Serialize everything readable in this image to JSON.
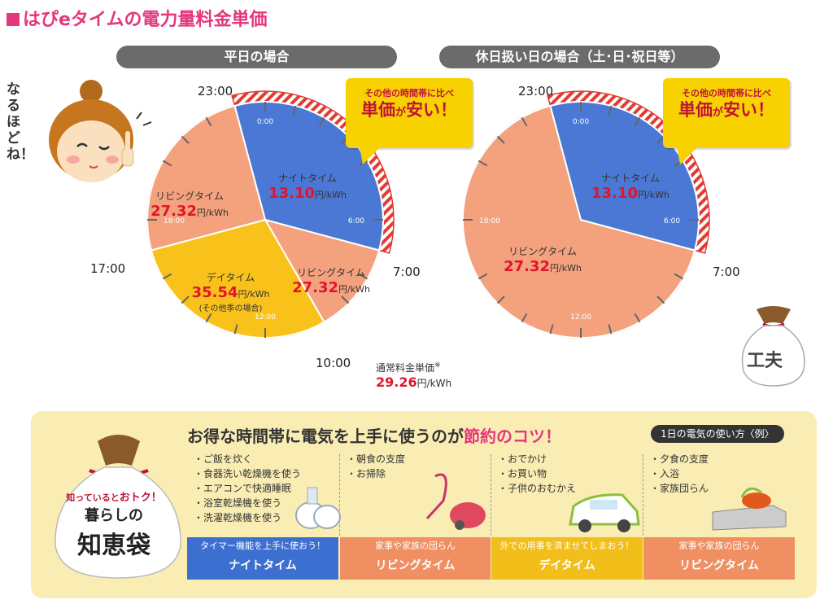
{
  "page_title": "はぴeタイムの電力量料金単価",
  "girl_text": "なるほどね！",
  "weekday": {
    "label": "平日の場合",
    "hours": {
      "h23": "23:00",
      "h17": "17:00",
      "h7": "7:00",
      "h10": "10:00"
    },
    "inner_ticks": {
      "t0": "0:00",
      "t6": "6:00",
      "t12": "12:00",
      "t18": "18:00"
    },
    "segments": {
      "night": {
        "name": "ナイトタイム",
        "price": "13.10",
        "unit": "円/kWh"
      },
      "living1": {
        "name": "リビングタイム",
        "price": "27.32",
        "unit": "円/kWh"
      },
      "living2": {
        "name": "リビングタイム",
        "price": "27.32",
        "unit": "円/kWh"
      },
      "day": {
        "name": "デイタイム",
        "price": "35.54",
        "unit": "円/kWh",
        "note": "(その他季の場合)"
      }
    },
    "bubble": {
      "line1": "その他の時間帯に比べ",
      "big1": "単価",
      "small": "が",
      "big2": "安い！"
    }
  },
  "holiday": {
    "label": "休日扱い日の場合（土･日･祝日等）",
    "hours": {
      "h23": "23:00",
      "h7": "7:00"
    },
    "inner_ticks": {
      "t0": "0:00",
      "t6": "6:00",
      "t12": "12:00",
      "t18": "18:00"
    },
    "segments": {
      "night": {
        "name": "ナイトタイム",
        "price": "13.10",
        "unit": "円/kWh"
      },
      "living": {
        "name": "リビングタイム",
        "price": "27.32",
        "unit": "円/kWh"
      }
    },
    "bubble": {
      "line1": "その他の時間帯に比べ",
      "big1": "単価",
      "small": "が",
      "big2": "安い！"
    }
  },
  "normal_rate": {
    "label": "通常料金単価",
    "mark": "※",
    "price": "29.26",
    "unit": "円/kWh"
  },
  "bag_top": {
    "text": "工夫"
  },
  "tips": {
    "headline_a": "お得な時間帯に電気を上手に使うのが",
    "headline_b": "節約のコツ！",
    "tag": "1日の電気の使い方〈例〉",
    "bag": {
      "small_a": "知っていると",
      "small_b": "おトク！",
      "line2": "暮らしの",
      "line3": "知恵袋"
    },
    "columns": [
      {
        "items": [
          "・ご飯を炊く",
          "・食器洗い乾燥機を使う",
          "・エアコンで快適睡眠",
          "・浴室乾燥機を使う",
          "・洗濯乾燥機を使う"
        ],
        "band_small": "タイマー機能を上手に使おう！",
        "band_big": "ナイトタイム",
        "band_color": "#3d6fd0"
      },
      {
        "items": [
          "・朝食の支度",
          "・お掃除"
        ],
        "band_small": "家事や家族の団らん",
        "band_big": "リビングタイム",
        "band_color": "#ef8f62"
      },
      {
        "items": [
          "・おでかけ",
          "・お買い物",
          "・子供のおむかえ"
        ],
        "band_small": "外での用事を済ませてしまおう！",
        "band_big": "デイタイム",
        "band_color": "#f2be1a"
      },
      {
        "items": [
          "・夕食の支度",
          "・入浴",
          "・家族団らん"
        ],
        "band_small": "家事や家族の団らん",
        "band_big": "リビングタイム",
        "band_color": "#ef8f62"
      }
    ]
  },
  "colors": {
    "pink": "#e4377c",
    "night": "#4a78d4",
    "living": "#f4a27e",
    "day": "#f9c21b",
    "red": "#e1142c",
    "bubble": "#f7d200"
  }
}
